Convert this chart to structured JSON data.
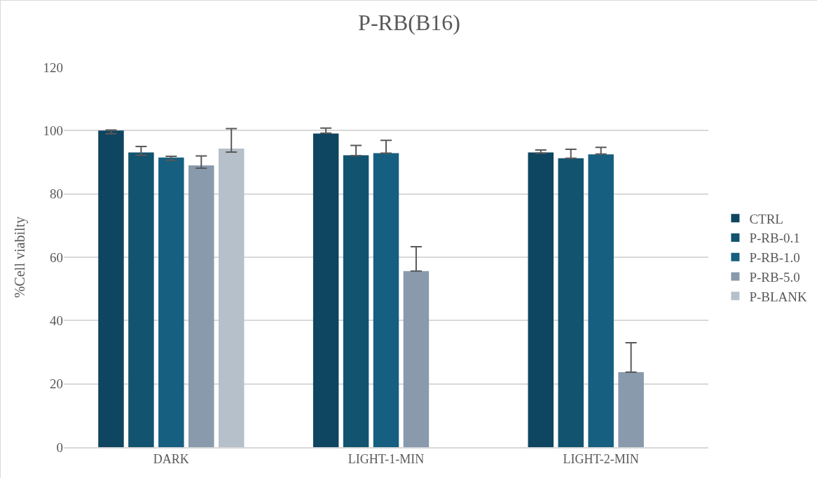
{
  "chart_data": {
    "type": "bar",
    "title": "P-RB(B16)",
    "ylabel": "%Cell viabilty",
    "categories": [
      "DARK",
      "LIGHT-1-MIN",
      "LIGHT-2-MIN"
    ],
    "series": [
      {
        "name": "CTRL",
        "color": "#0e4560",
        "values": [
          100,
          99.1,
          93.1
        ],
        "errors": [
          [
            99.0,
            100.2
          ],
          [
            99.2,
            100.8
          ],
          [
            92.9,
            93.9
          ]
        ]
      },
      {
        "name": "P-RB-0.1",
        "color": "#12536f",
        "values": [
          93.1,
          92.2,
          91.3
        ],
        "errors": [
          [
            92.2,
            95.0
          ],
          [
            92.1,
            95.3
          ],
          [
            91.3,
            94.1
          ]
        ]
      },
      {
        "name": "P-RB-1.0",
        "color": "#165f80",
        "values": [
          91.5,
          92.9,
          92.5
        ],
        "errors": [
          [
            90.6,
            91.9
          ],
          [
            92.9,
            96.9
          ],
          [
            92.6,
            94.7
          ]
        ]
      },
      {
        "name": "P-RB-5.0",
        "color": "#889aab",
        "values": [
          89.0,
          55.6,
          23.7
        ],
        "errors": [
          [
            88.1,
            92.0
          ],
          [
            55.6,
            63.3
          ],
          [
            23.7,
            33.0
          ]
        ]
      },
      {
        "name": "P-BLANK",
        "color": "#b5c0ca",
        "values": [
          94.3,
          null,
          null
        ],
        "errors": [
          [
            93.2,
            100.6
          ],
          null,
          null
        ]
      }
    ],
    "ylim": [
      0,
      120
    ],
    "yticks": [
      0,
      20,
      40,
      60,
      80,
      100,
      120
    ],
    "grid": "y",
    "legend": "right"
  }
}
